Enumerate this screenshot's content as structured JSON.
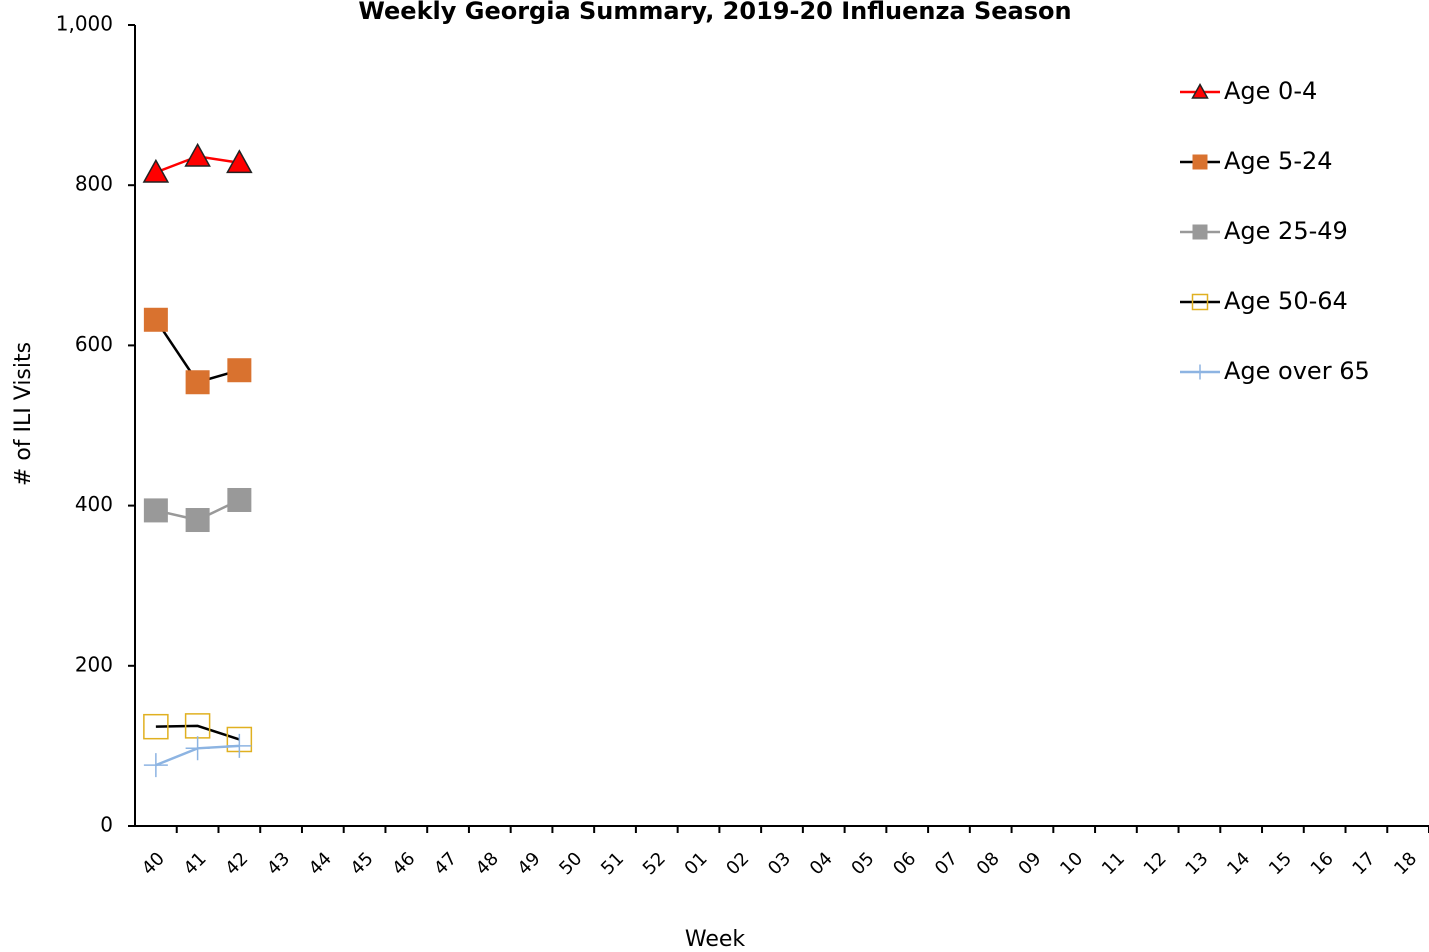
{
  "chart_data": {
    "type": "line",
    "title": "Weekly Georgia Summary, 2019-20 Influenza Season",
    "x_label": "Week",
    "y_label": "# of ILI Visits",
    "categories": [
      "40",
      "41",
      "42",
      "43",
      "44",
      "45",
      "46",
      "47",
      "48",
      "49",
      "50",
      "51",
      "52",
      "01",
      "02",
      "03",
      "04",
      "05",
      "06",
      "07",
      "08",
      "09",
      "10",
      "11",
      "12",
      "13",
      "14",
      "15",
      "16",
      "17",
      "18"
    ],
    "ylim": [
      0,
      1000
    ],
    "yticks": [
      0,
      200,
      400,
      600,
      800,
      {
        "value": 1000,
        "label": "1,000"
      }
    ],
    "series": [
      {
        "name": "Age 0-4",
        "color": "#ff0000",
        "marker": "triangle",
        "marker_color": "#ff0000",
        "values": [
          816,
          836,
          828,
          null,
          null,
          null,
          null,
          null,
          null,
          null,
          null,
          null,
          null,
          null,
          null,
          null,
          null,
          null,
          null,
          null,
          null,
          null,
          null,
          null,
          null,
          null,
          null,
          null,
          null,
          null,
          null
        ]
      },
      {
        "name": "Age 5-24",
        "color": "#000000",
        "marker": "square",
        "marker_color": "#d9722f",
        "values": [
          632,
          554,
          569,
          null,
          null,
          null,
          null,
          null,
          null,
          null,
          null,
          null,
          null,
          null,
          null,
          null,
          null,
          null,
          null,
          null,
          null,
          null,
          null,
          null,
          null,
          null,
          null,
          null,
          null,
          null,
          null
        ]
      },
      {
        "name": "Age 25-49",
        "color": "#999999",
        "marker": "square",
        "marker_color": "#999999",
        "values": [
          394,
          382,
          407,
          null,
          null,
          null,
          null,
          null,
          null,
          null,
          null,
          null,
          null,
          null,
          null,
          null,
          null,
          null,
          null,
          null,
          null,
          null,
          null,
          null,
          null,
          null,
          null,
          null,
          null,
          null,
          null
        ]
      },
      {
        "name": "Age 50-64",
        "color": "#000000",
        "marker": "hollow-square",
        "marker_color": "#e0b020",
        "values": [
          124,
          125,
          108,
          null,
          null,
          null,
          null,
          null,
          null,
          null,
          null,
          null,
          null,
          null,
          null,
          null,
          null,
          null,
          null,
          null,
          null,
          null,
          null,
          null,
          null,
          null,
          null,
          null,
          null,
          null,
          null
        ]
      },
      {
        "name": "Age over 65",
        "color": "#8db4e2",
        "marker": "plus",
        "marker_color": "#8db4e2",
        "values": [
          76,
          97,
          100,
          null,
          null,
          null,
          null,
          null,
          null,
          null,
          null,
          null,
          null,
          null,
          null,
          null,
          null,
          null,
          null,
          null,
          null,
          null,
          null,
          null,
          null,
          null,
          null,
          null,
          null,
          null,
          null
        ]
      }
    ]
  }
}
